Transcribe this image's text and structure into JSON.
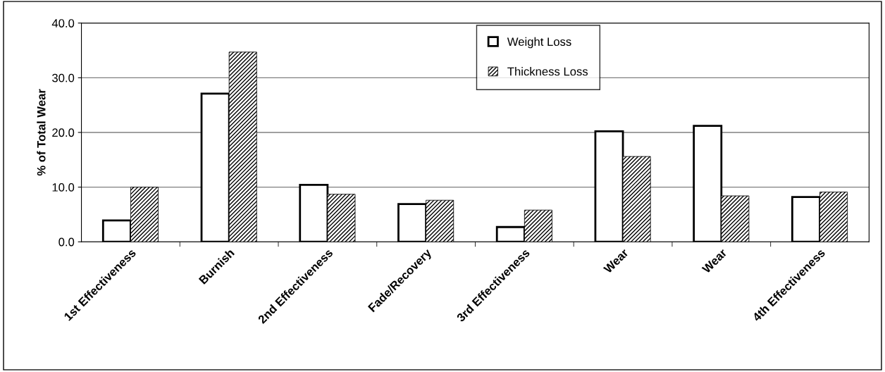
{
  "chart_data": {
    "type": "bar",
    "ylabel": "% of Total Wear",
    "categories": [
      "1st Effectiveness",
      "Burnish",
      "2nd Effectiveness",
      "Fade/Recovery",
      "3rd Effectiveness",
      "Wear",
      "Wear",
      "4th Effectiveness"
    ],
    "series": [
      {
        "name": "Weight Loss",
        "color": "#ffffff",
        "values": [
          3.9,
          27.1,
          10.4,
          6.9,
          2.7,
          20.2,
          21.2,
          8.2
        ]
      },
      {
        "name": "Thickness Loss",
        "color": "#000000",
        "values": [
          10.0,
          34.7,
          8.7,
          7.6,
          5.8,
          15.6,
          8.4,
          9.1
        ]
      }
    ],
    "ylim": [
      0,
      40
    ],
    "yticks": [
      {
        "value": 0,
        "label": "0.0"
      },
      {
        "value": 10,
        "label": "10.0"
      },
      {
        "value": 20,
        "label": "20.0"
      },
      {
        "value": 30,
        "label": "30.0"
      },
      {
        "value": 40,
        "label": "40.0"
      }
    ],
    "grid": "y",
    "legend": "top"
  }
}
